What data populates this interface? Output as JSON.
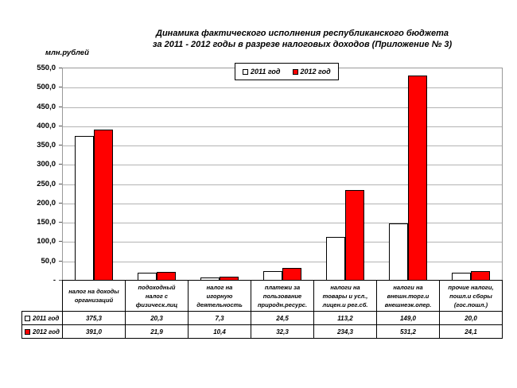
{
  "page": {
    "background": "#FFFFFF"
  },
  "chart_data": {
    "type": "bar",
    "title_line1": "Динамика фактического исполнения республиканского бюджета",
    "title_line2": "за 2011 - 2012 годы в разрезе налоговых доходов (Приложение № 3)",
    "unit_label": "млн.рублей",
    "ylim": [
      0,
      550
    ],
    "ytick_step": 50,
    "zero_tick_label": "-",
    "grid": true,
    "legend_position": "top-center",
    "categories": [
      "налог на доходы\nорганизаций",
      "подоходный\nналог с\nфизическ.лиц",
      "налог на\nигорную\nдеятельность",
      "платежи за\nпользование\nприродн.ресурс.",
      "налоги на\nтовары и усл.,\nлицен.и рег.сб.",
      "налоги на\nвнешн.торг.и\nвнешнеэк.опер.",
      "прочие налоги,\nпошл.и сборы\n(гос.пошл.)"
    ],
    "series": [
      {
        "name": "2011 год",
        "color": "#FFFFFF",
        "values": [
          375.3,
          20.3,
          7.3,
          24.5,
          113.2,
          149.0,
          20.0
        ]
      },
      {
        "name": "2012 год",
        "color": "#FF0000",
        "values": [
          391.0,
          21.9,
          10.4,
          32.3,
          234.3,
          531.2,
          24.1
        ]
      }
    ],
    "colors": {
      "gridline": "#B3B3B3",
      "plot_border": "#999999",
      "axis": "#000000",
      "bar_border": "#000000",
      "series_2012": "#FF0000"
    }
  }
}
